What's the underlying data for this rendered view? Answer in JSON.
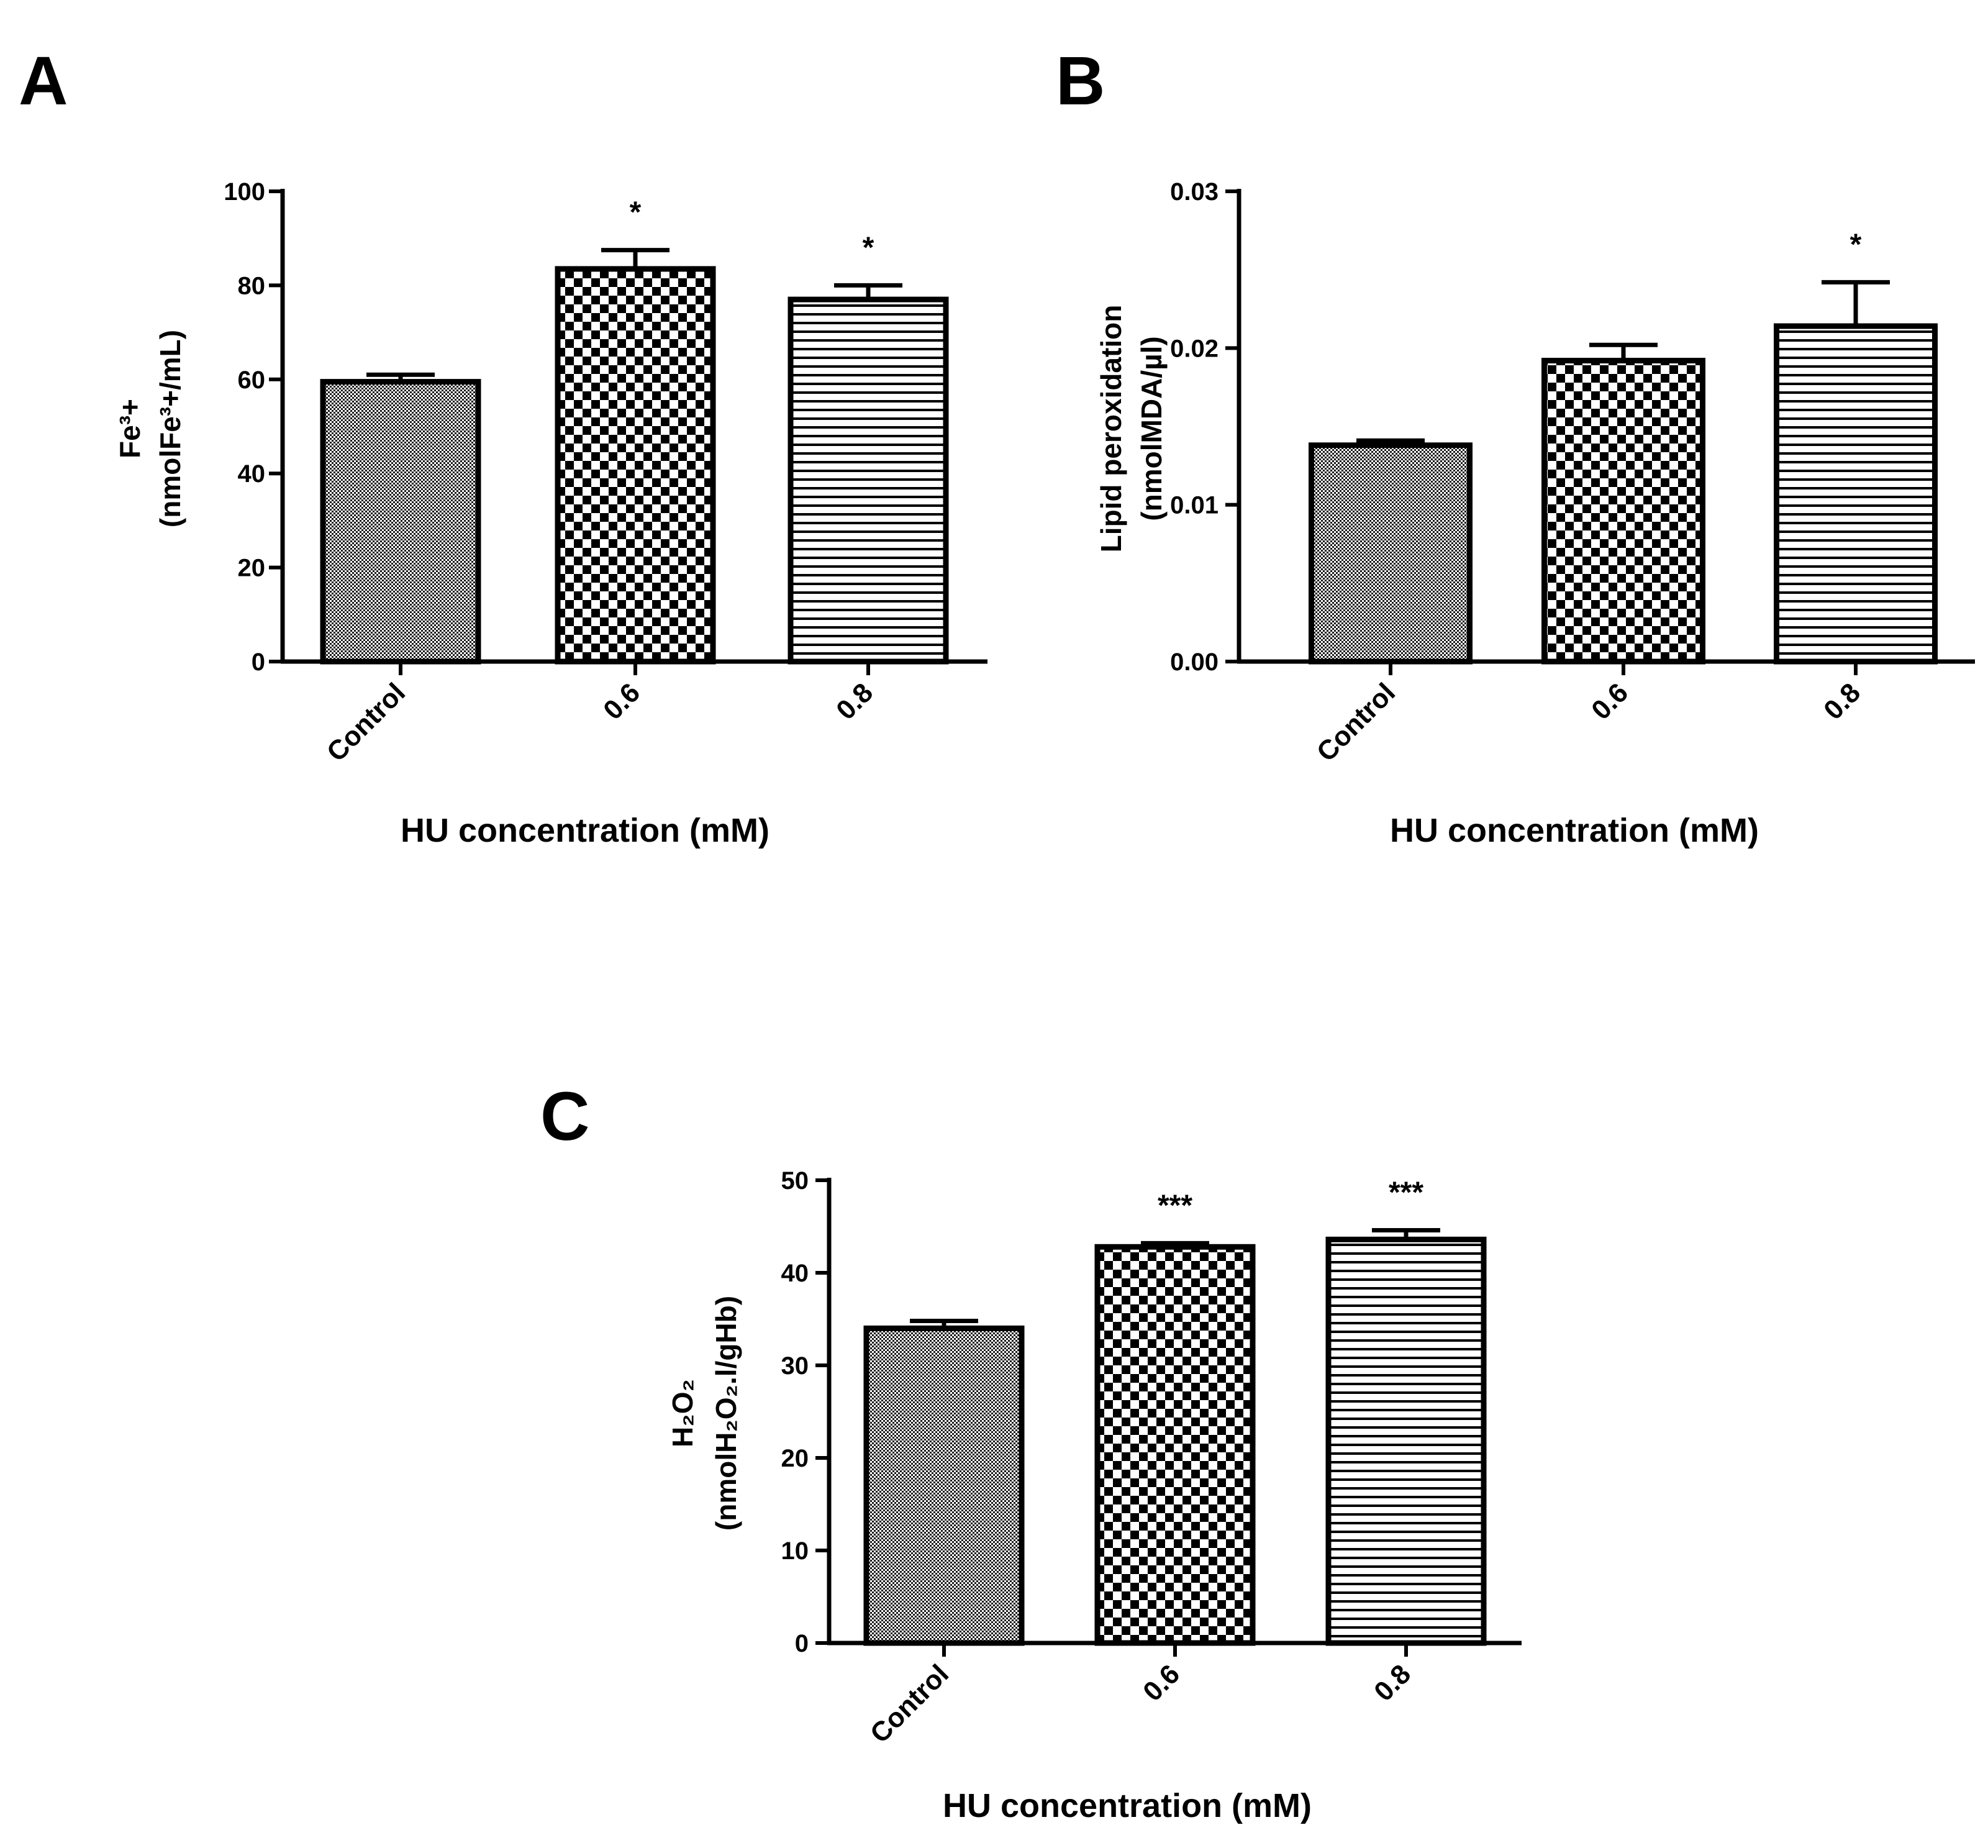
{
  "chart_data": [
    {
      "type": "bar",
      "panel": "A",
      "categories": [
        "Control",
        "0.6",
        "0.8"
      ],
      "values": [
        59.5,
        83.5,
        77
      ],
      "errors": [
        1.5,
        4,
        3
      ],
      "significance": [
        "",
        "*",
        "*"
      ],
      "patterns": [
        "fine",
        "check",
        "hlines"
      ],
      "ylabel_line1": "Fe³+",
      "ylabel_line2": "(nmolFe³+/mL)",
      "xlabel": "HU concentration (mM)",
      "ylim": [
        0,
        100
      ],
      "yticks": [
        0,
        20,
        40,
        60,
        80,
        100
      ],
      "ytick_labels": [
        "0",
        "20",
        "40",
        "60",
        "80",
        "100"
      ]
    },
    {
      "type": "bar",
      "panel": "B",
      "categories": [
        "Control",
        "0.6",
        "0.8"
      ],
      "values": [
        0.0138,
        0.0192,
        0.0214
      ],
      "errors": [
        0.0003,
        0.001,
        0.0028
      ],
      "significance": [
        "",
        "",
        "*"
      ],
      "patterns": [
        "fine",
        "check",
        "hlines"
      ],
      "ylabel_line1": "Lipid peroxidation",
      "ylabel_line2": "(nmolMDA/µl)",
      "xlabel": "HU concentration (mM)",
      "ylim": [
        0,
        0.03
      ],
      "yticks": [
        0,
        0.01,
        0.02,
        0.03
      ],
      "ytick_labels": [
        "0.00",
        "0.01",
        "0.02",
        "0.03"
      ]
    },
    {
      "type": "bar",
      "panel": "C",
      "categories": [
        "Control",
        "0.6",
        "0.8"
      ],
      "values": [
        34,
        42.8,
        43.6
      ],
      "errors": [
        0.8,
        0.4,
        1.0
      ],
      "significance": [
        "",
        "***",
        "***"
      ],
      "patterns": [
        "fine",
        "check",
        "hlines"
      ],
      "ylabel_line1": "H₂O₂",
      "ylabel_line2": "(nmolH₂O₂.l/gHb)",
      "xlabel": "HU concentration (mM)",
      "ylim": [
        0,
        50
      ],
      "yticks": [
        0,
        10,
        20,
        30,
        40,
        50
      ],
      "ytick_labels": [
        "0",
        "10",
        "20",
        "30",
        "40",
        "50"
      ]
    }
  ]
}
